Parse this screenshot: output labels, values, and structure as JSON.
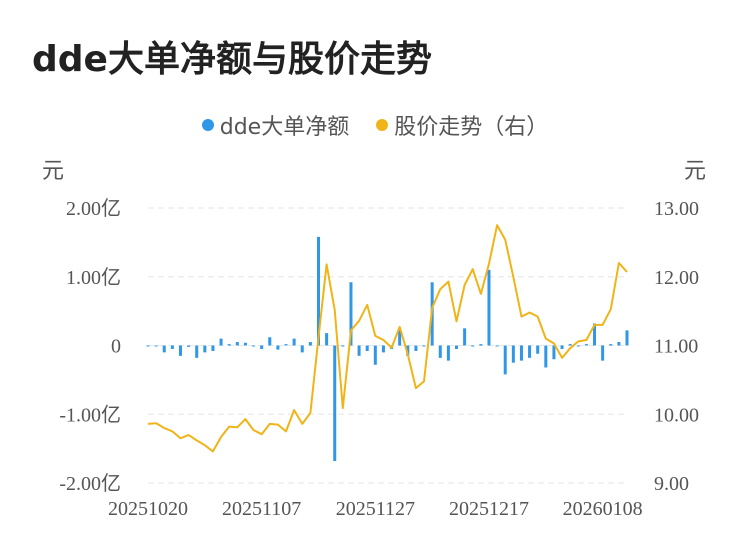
{
  "title": "dde大单净额与股价走势",
  "colors": {
    "bar": "#2f96e8",
    "line": "#f0b418",
    "grid": "#e6e6e6",
    "axis_text": "#555555"
  },
  "chart_data": {
    "type": "bar+line",
    "title": "dde大单净额与股价走势",
    "legend_position": "top-center",
    "grid": true,
    "left_axis": {
      "unit_label": "元",
      "ylim": [
        -2.0,
        2.0
      ],
      "ticks": [
        2.0,
        1.0,
        0,
        -1.0,
        -2.0
      ],
      "tick_labels": [
        "2.00亿",
        "1.00亿",
        "0",
        "-1.00亿",
        "-2.00亿"
      ]
    },
    "right_axis": {
      "unit_label": "元",
      "ylim": [
        9.0,
        13.0
      ],
      "ticks": [
        13.0,
        12.0,
        11.0,
        10.0,
        9.0
      ],
      "tick_labels": [
        "13.00",
        "12.00",
        "11.00",
        "10.00",
        "9.00"
      ]
    },
    "x_tick_labels": [
      "20251020",
      "20251107",
      "20251127",
      "20251217",
      "20260108"
    ],
    "x_tick_index": [
      0,
      14,
      28,
      42,
      56
    ],
    "series": [
      {
        "name": "dde大单净额",
        "axis": "left",
        "type": "bar",
        "values": [
          -0.01,
          0.0,
          -0.1,
          -0.05,
          -0.15,
          -0.02,
          -0.18,
          -0.1,
          -0.08,
          0.1,
          0.02,
          0.05,
          0.04,
          0.0,
          -0.05,
          0.12,
          -0.06,
          0.02,
          0.1,
          -0.1,
          0.05,
          1.58,
          0.18,
          -1.68,
          0.0,
          0.92,
          -0.15,
          -0.08,
          -0.28,
          -0.1,
          -0.05,
          0.22,
          -0.15,
          -0.08,
          0.0,
          0.92,
          -0.18,
          -0.22,
          -0.05,
          0.25,
          0.0,
          0.02,
          1.1,
          0.0,
          -0.42,
          -0.25,
          -0.22,
          -0.18,
          -0.12,
          -0.32,
          -0.2,
          -0.05,
          0.02,
          0.0,
          0.02,
          0.32,
          -0.22,
          0.02,
          0.05,
          0.22
        ]
      },
      {
        "name": "股价走势（右）",
        "axis": "right",
        "type": "line",
        "values": [
          9.86,
          9.87,
          9.8,
          9.75,
          9.65,
          9.7,
          9.62,
          9.55,
          9.46,
          9.67,
          9.82,
          9.81,
          9.93,
          9.77,
          9.71,
          9.86,
          9.85,
          9.75,
          10.06,
          9.86,
          10.02,
          11.12,
          12.18,
          11.52,
          10.09,
          11.22,
          11.36,
          11.59,
          11.14,
          11.08,
          10.97,
          11.27,
          10.87,
          10.38,
          10.48,
          11.55,
          11.82,
          11.93,
          11.35,
          11.88,
          12.11,
          11.75,
          12.19,
          12.75,
          12.54,
          12.0,
          11.42,
          11.48,
          11.42,
          11.1,
          11.03,
          10.82,
          10.96,
          11.06,
          11.08,
          11.3,
          11.3,
          11.53,
          12.2,
          12.07
        ]
      }
    ]
  }
}
